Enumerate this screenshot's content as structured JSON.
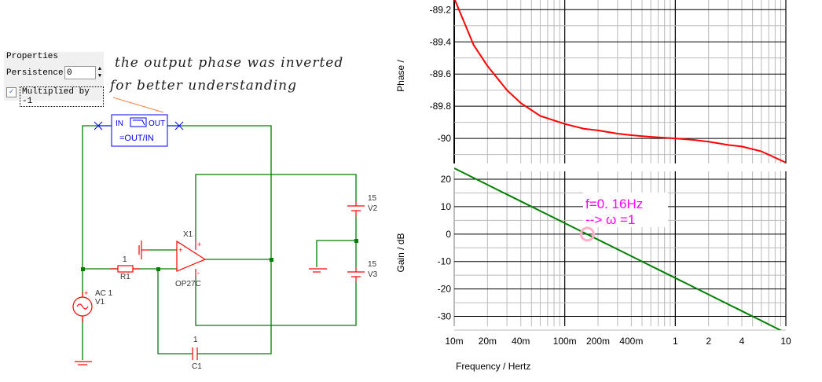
{
  "properties": {
    "title": "Properties",
    "persistence_label": "Persistence",
    "persistence_value": "0",
    "multiplied_label": "Multiplied by -1",
    "multiplied_checked": true
  },
  "annotation": {
    "line1": "the output phase was inverted",
    "line2": "for better understanding"
  },
  "schematic": {
    "probe": {
      "in": "IN",
      "out": "OUT",
      "formula": "=OUT/IN"
    },
    "r1": {
      "value": "1",
      "name": "R1"
    },
    "c1": {
      "value": "1",
      "name": "C1"
    },
    "opamp": {
      "name": "X1",
      "model": "OP27C"
    },
    "v1": {
      "value": "AC 1",
      "name": "V1"
    },
    "v2": {
      "value": "15",
      "name": "V2"
    },
    "v3": {
      "value": "15",
      "name": "V3"
    },
    "wire_color": "#008000",
    "component_color": "#ff0000",
    "probe_color": "#0000ff"
  },
  "chart_data": [
    {
      "type": "line",
      "ylabel": "Phase /",
      "xscale": "log",
      "xlim": [
        0.01,
        10
      ],
      "ylim": [
        -90.18,
        -89.14
      ],
      "yticks": [
        "-89.2",
        "-89.4",
        "-89.6",
        "-89.8",
        "-90"
      ],
      "grid": true,
      "series": [
        {
          "color": "#ff0000",
          "x": [
            0.01,
            0.015,
            0.02,
            0.03,
            0.04,
            0.06,
            0.1,
            0.15,
            0.2,
            0.3,
            0.4,
            0.6,
            1,
            1.5,
            2,
            3,
            4,
            6,
            10
          ],
          "y": [
            -89.13,
            -89.42,
            -89.55,
            -89.7,
            -89.78,
            -89.86,
            -89.91,
            -89.94,
            -89.95,
            -89.97,
            -89.98,
            -89.99,
            -90.0,
            -90.01,
            -90.02,
            -90.04,
            -90.05,
            -90.08,
            -90.15
          ]
        }
      ]
    },
    {
      "type": "line",
      "ylabel": "Gain / dB",
      "xlabel": "Frequency / Hertz",
      "xscale": "log",
      "xlim": [
        0.01,
        10
      ],
      "ylim": [
        -35,
        24.3
      ],
      "yticks": [
        "20",
        "10",
        "0",
        "-10",
        "-20",
        "-30"
      ],
      "xticks": [
        "10m",
        "20m",
        "40m",
        "100m",
        "200m",
        "400m",
        "1",
        "2",
        "4",
        "10"
      ],
      "grid": true,
      "series": [
        {
          "color": "#008000",
          "x": [
            0.01,
            0.1,
            1,
            10
          ],
          "y": [
            24,
            4,
            -16,
            -36
          ]
        }
      ],
      "annotation": {
        "line1": "f=0. 16Hz",
        "line2": "--> ω =1",
        "x": 0.16,
        "y": 0,
        "color": "#ff00ff",
        "marker_color": "#ffb0c8"
      }
    }
  ]
}
